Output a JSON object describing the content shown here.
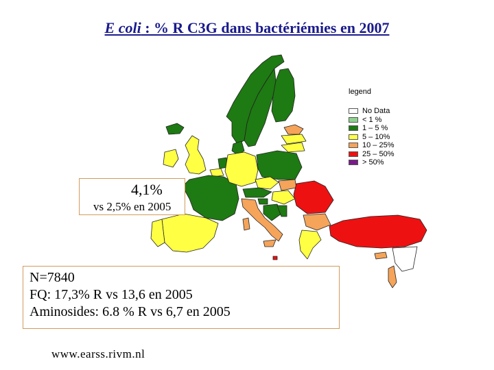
{
  "title": {
    "em": "E coli",
    "rest": " : % R C3G dans bactériémies en 2007"
  },
  "legend": {
    "title": "legend",
    "items": [
      {
        "label": "No Data",
        "color": "#ffffff"
      },
      {
        "label": "< 1 %",
        "color": "#8fd28f"
      },
      {
        "label": "1 – 5 %",
        "color": "#1e7a12"
      },
      {
        "label": "5 – 10%",
        "color": "#ffff44"
      },
      {
        "label": "10 – 25%",
        "color": "#f5a45a"
      },
      {
        "label": "25 – 50%",
        "color": "#ee1111"
      },
      {
        "label": "> 50%",
        "color": "#7a1a8a"
      }
    ]
  },
  "callout": {
    "main": "4,1%",
    "sub": "vs 2,5% en 2005"
  },
  "stats": [
    "N=7840",
    "FQ: 17,3% R vs 13,6 en 2005",
    "Aminosides: 6.8 % R vs 6,7 en 2005"
  ],
  "source": "www.earss.rivm.nl",
  "regions": [
    {
      "name": "norway-region",
      "category": "1 – 5 %"
    },
    {
      "name": "sweden-region",
      "category": "1 – 5 %"
    },
    {
      "name": "finland-region",
      "category": "1 – 5 %"
    },
    {
      "name": "iceland-region",
      "category": "1 – 5 %"
    },
    {
      "name": "estonia-region",
      "category": "10 – 25%"
    },
    {
      "name": "latvia-region",
      "category": "5 – 10%"
    },
    {
      "name": "lithuania-region",
      "category": "5 – 10%"
    },
    {
      "name": "denmark-region",
      "category": "1 – 5 %"
    },
    {
      "name": "uk-region",
      "category": "5 – 10%"
    },
    {
      "name": "ireland-region",
      "category": "5 – 10%"
    },
    {
      "name": "netherlands-region",
      "category": "1 – 5 %"
    },
    {
      "name": "belgium-region",
      "category": "5 – 10%"
    },
    {
      "name": "france-region",
      "category": "1 – 5 %"
    },
    {
      "name": "germany-region",
      "category": "5 – 10%"
    },
    {
      "name": "poland-region",
      "category": "1 – 5 %"
    },
    {
      "name": "czech-region",
      "category": "5 – 10%"
    },
    {
      "name": "slovakia-region",
      "category": "10 – 25%"
    },
    {
      "name": "austria-region",
      "category": "1 – 5 %"
    },
    {
      "name": "hungary-region",
      "category": "5 – 10%"
    },
    {
      "name": "slovenia-region",
      "category": "1 – 5 %"
    },
    {
      "name": "croatia-region",
      "category": "1 – 5 %"
    },
    {
      "name": "bosnia-region",
      "category": "1 – 5 %"
    },
    {
      "name": "romania-region",
      "category": "25 – 50%"
    },
    {
      "name": "bulgaria-region",
      "category": "10 – 25%"
    },
    {
      "name": "italy-region",
      "category": "10 – 25%"
    },
    {
      "name": "spain-region",
      "category": "5 – 10%"
    },
    {
      "name": "portugal-region",
      "category": "5 – 10%"
    },
    {
      "name": "greece-region",
      "category": "5 – 10%"
    },
    {
      "name": "turkey-region",
      "category": "25 – 50%"
    },
    {
      "name": "cyprus-region",
      "category": "10 – 25%"
    },
    {
      "name": "malta-region",
      "category": "25 – 50%"
    },
    {
      "name": "israel-region",
      "category": "10 – 25%"
    },
    {
      "name": "nodata-east-region",
      "category": "No Data"
    }
  ]
}
